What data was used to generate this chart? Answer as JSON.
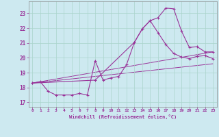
{
  "xlabel": "Windchill (Refroidissement éolien,°C)",
  "bg_color": "#cde9f0",
  "line_color": "#993399",
  "grid_color": "#aad4cc",
  "xlim": [
    -0.5,
    23.5
  ],
  "ylim": [
    16.7,
    23.8
  ],
  "yticks": [
    17,
    18,
    19,
    20,
    21,
    22,
    23
  ],
  "xticks": [
    0,
    1,
    2,
    3,
    4,
    5,
    6,
    7,
    8,
    9,
    10,
    11,
    12,
    13,
    14,
    15,
    16,
    17,
    18,
    19,
    20,
    21,
    22,
    23
  ],
  "curve1_x": [
    0,
    1,
    2,
    3,
    4,
    5,
    6,
    7,
    8,
    9,
    10,
    11,
    12,
    13,
    14,
    15,
    16,
    17,
    18,
    19,
    20,
    21,
    22,
    23
  ],
  "curve1_y": [
    18.3,
    18.4,
    17.75,
    17.5,
    17.5,
    17.5,
    17.6,
    17.5,
    19.8,
    18.5,
    18.65,
    18.75,
    19.55,
    21.05,
    21.95,
    22.5,
    22.7,
    23.35,
    23.3,
    21.8,
    20.7,
    20.75,
    20.4,
    20.4
  ],
  "curve2_x": [
    0,
    8,
    13,
    14,
    15,
    16,
    17,
    18,
    19,
    20,
    21,
    22,
    23
  ],
  "curve2_y": [
    18.3,
    18.5,
    21.05,
    21.95,
    22.5,
    21.7,
    20.9,
    20.3,
    20.05,
    19.95,
    20.1,
    20.15,
    19.95
  ],
  "curve3_x": [
    0,
    23
  ],
  "curve3_y": [
    18.3,
    19.6
  ],
  "curve4_x": [
    0,
    23
  ],
  "curve4_y": [
    18.3,
    20.4
  ]
}
